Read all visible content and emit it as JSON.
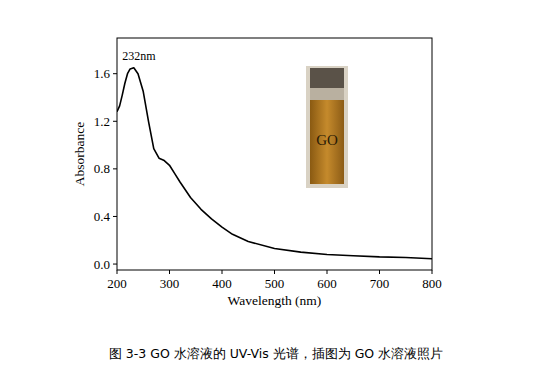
{
  "chart_data": {
    "type": "line",
    "x_label": "Wavelength (nm)",
    "y_label": "Absorbance",
    "caption": "图 3-3 GO 水溶液的 UV-Vis 光谱，插图为 GO 水溶液照片",
    "inset_label": "GO",
    "annotations": [
      {
        "text": "232nm",
        "x": 232,
        "y": 1.65
      }
    ],
    "color": "#000000",
    "x": [
      200,
      205,
      210,
      215,
      220,
      225,
      232,
      240,
      250,
      260,
      270,
      280,
      290,
      300,
      310,
      320,
      340,
      360,
      380,
      400,
      420,
      450,
      500,
      550,
      600,
      650,
      700,
      750,
      800
    ],
    "values": [
      1.28,
      1.33,
      1.42,
      1.52,
      1.6,
      1.64,
      1.65,
      1.6,
      1.45,
      1.2,
      0.97,
      0.89,
      0.87,
      0.83,
      0.76,
      0.69,
      0.56,
      0.46,
      0.38,
      0.31,
      0.25,
      0.19,
      0.13,
      0.1,
      0.08,
      0.07,
      0.06,
      0.055,
      0.045
    ],
    "xlim": [
      200,
      800
    ],
    "ylim": [
      -0.05,
      1.9
    ],
    "xticks": [
      200,
      300,
      400,
      500,
      600,
      700,
      800
    ],
    "yticks": [
      {
        "value": 0,
        "label": "0.0"
      },
      0.4,
      0.8,
      1.2,
      1.6
    ],
    "grid": false
  }
}
